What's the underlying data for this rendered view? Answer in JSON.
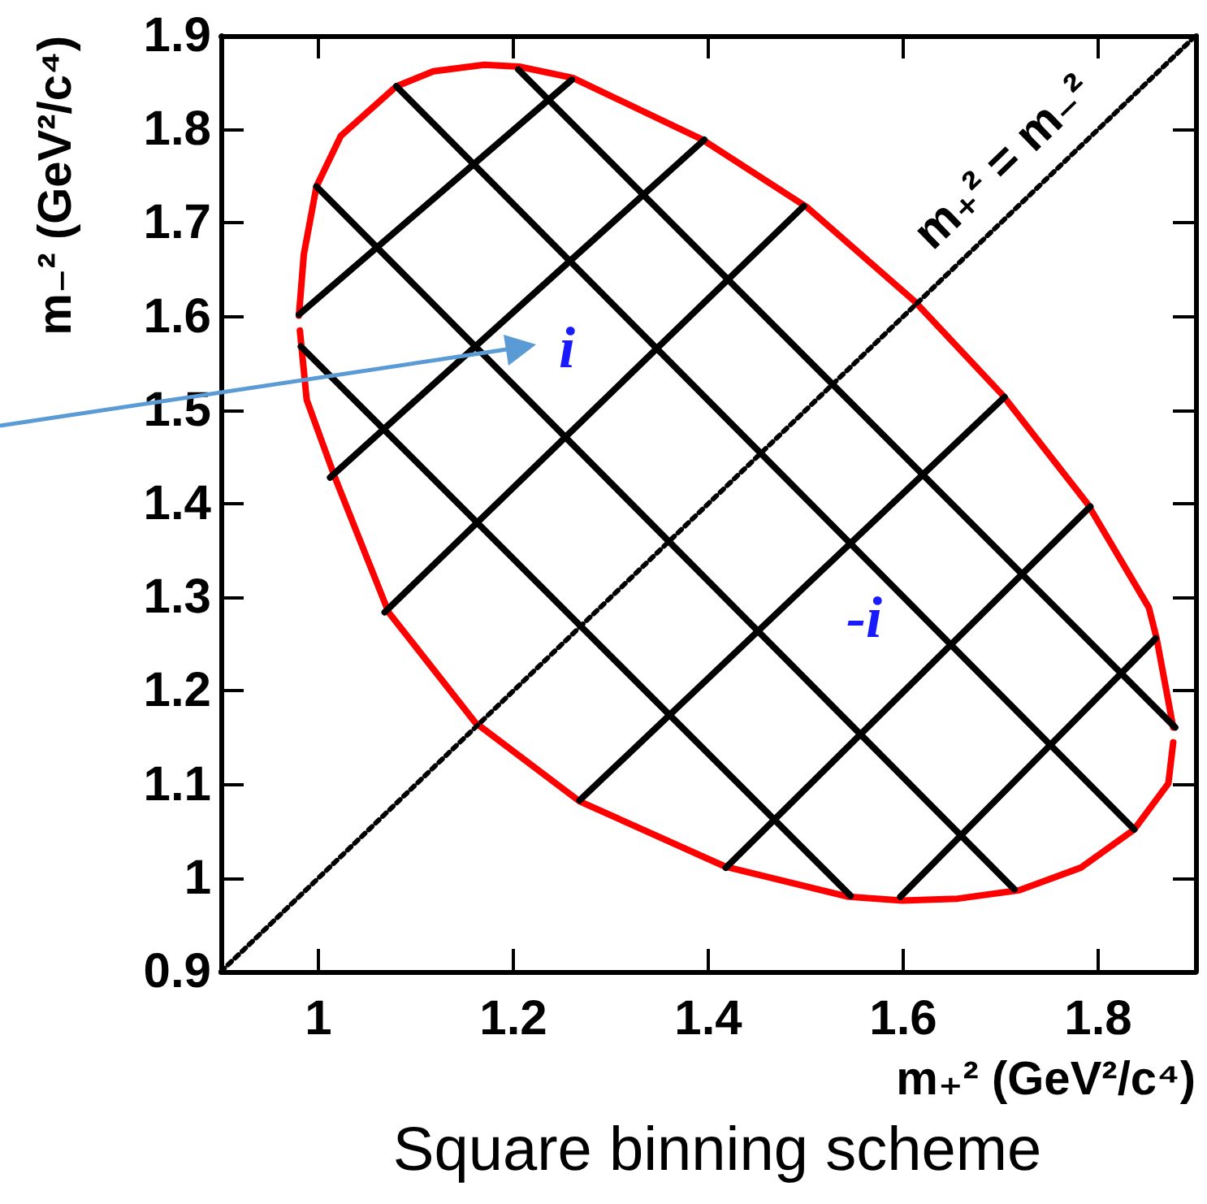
{
  "chart_data": {
    "type": "line",
    "xlabel": "m₊² (GeV²/c⁴)",
    "ylabel": "m₋² (GeV²/c⁴)",
    "xlim": [
      0.9,
      1.9
    ],
    "ylim": [
      0.9,
      1.9
    ],
    "xticks": [
      1,
      1.2,
      1.4,
      1.6,
      1.8
    ],
    "yticks": [
      0.9,
      1,
      1.1,
      1.2,
      1.3,
      1.4,
      1.5,
      1.6,
      1.7,
      1.8,
      1.9
    ],
    "grid": false,
    "marker": "none",
    "series": [
      {
        "color": "#ff0000",
        "line_style": "solid",
        "x": [
          0.98,
          0.985,
          0.998,
          1.023,
          1.08,
          1.118,
          1.17,
          1.206,
          1.261,
          1.394,
          1.501,
          1.612,
          1.702,
          1.789,
          1.852,
          1.86,
          1.877
        ],
        "values": [
          1.601,
          1.666,
          1.739,
          1.793,
          1.846,
          1.862,
          1.869,
          1.867,
          1.855,
          1.789,
          1.717,
          1.616,
          1.516,
          1.4,
          1.289,
          1.256,
          1.161
        ]
      },
      {
        "color": "#ff0000",
        "line_style": "solid",
        "x": [
          0.981,
          0.988,
          1.017,
          1.072,
          1.161,
          1.268,
          1.418,
          1.544,
          1.599,
          1.656,
          1.719,
          1.782,
          1.837,
          1.872,
          1.877
        ],
        "values": [
          1.585,
          1.511,
          1.428,
          1.284,
          1.166,
          1.082,
          1.012,
          0.98,
          0.976,
          0.978,
          0.987,
          1.011,
          1.052,
          1.101,
          1.145
        ]
      },
      {
        "color": "#000000",
        "line_style": "dotted",
        "x": [
          0.9,
          1.9
        ],
        "values": [
          0.9,
          1.9
        ]
      },
      {
        "color": "#000000",
        "line_style": "solid",
        "x": [
          0.98,
          1.26
        ],
        "values": [
          1.602,
          1.853
        ]
      },
      {
        "color": "#000000",
        "line_style": "solid",
        "x": [
          1.012,
          1.396
        ],
        "values": [
          1.428,
          1.789
        ]
      },
      {
        "color": "#000000",
        "line_style": "solid",
        "x": [
          1.068,
          1.498
        ],
        "values": [
          1.284,
          1.718
        ]
      },
      {
        "color": "#000000",
        "line_style": "solid",
        "x": [
          1.268,
          1.704
        ],
        "values": [
          1.083,
          1.514
        ]
      },
      {
        "color": "#000000",
        "line_style": "solid",
        "x": [
          1.418,
          1.792
        ],
        "values": [
          1.011,
          1.397
        ]
      },
      {
        "color": "#000000",
        "line_style": "solid",
        "x": [
          1.597,
          1.859
        ],
        "values": [
          0.98,
          1.256
        ]
      },
      {
        "color": "#000000",
        "line_style": "solid",
        "x": [
          0.982,
          1.546
        ],
        "values": [
          1.568,
          0.981
        ]
      },
      {
        "color": "#000000",
        "line_style": "solid",
        "x": [
          0.998,
          1.714
        ],
        "values": [
          1.739,
          0.988
        ]
      },
      {
        "color": "#000000",
        "line_style": "solid",
        "x": [
          1.08,
          1.837
        ],
        "values": [
          1.846,
          1.052
        ]
      },
      {
        "color": "#000000",
        "line_style": "solid",
        "x": [
          1.205,
          1.879
        ],
        "values": [
          1.864,
          1.161
        ]
      }
    ],
    "annotations": [
      "i",
      "-i",
      "m₊² = m₋²",
      "Square binning scheme"
    ]
  }
}
